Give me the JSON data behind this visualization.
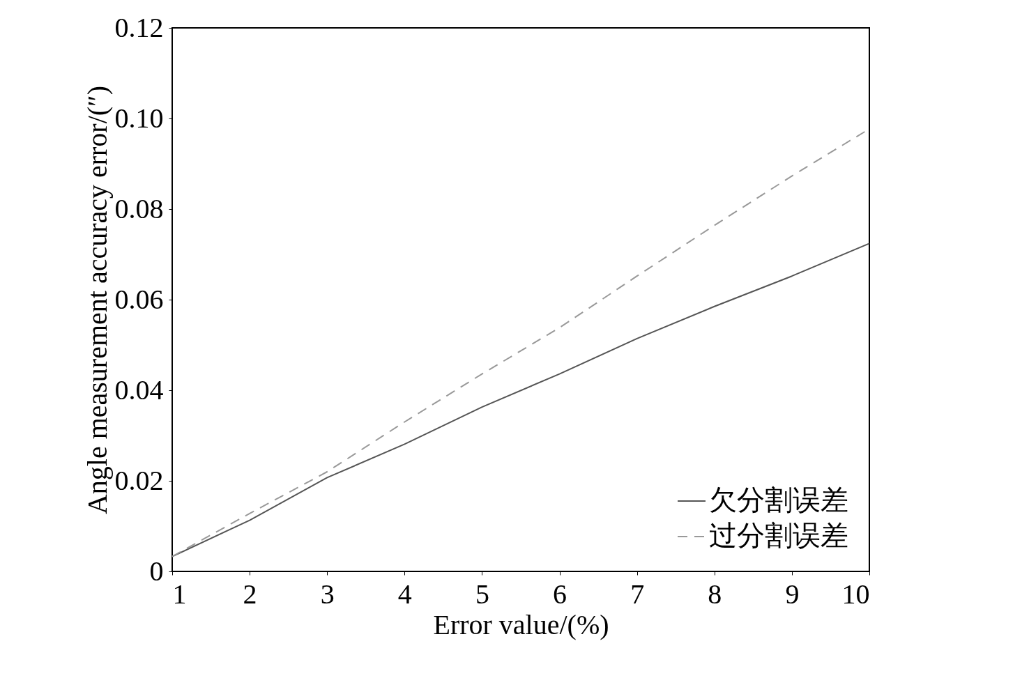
{
  "chart_data": {
    "type": "line",
    "xlabel": "Error value/(%)",
    "ylabel": "Angle measurement accuracy error/(″)",
    "x": [
      1,
      2,
      3,
      4,
      5,
      6,
      7,
      8,
      9,
      10
    ],
    "series": [
      {
        "name": "欠分割误差",
        "color": "#555555",
        "line_style": "solid",
        "values": [
          0.0033,
          0.0113,
          0.0207,
          0.0281,
          0.0363,
          0.0436,
          0.0514,
          0.0585,
          0.0652,
          0.0724
        ]
      },
      {
        "name": "过分割误差",
        "color": "#999999",
        "line_style": "dashed",
        "values": [
          0.0033,
          0.0128,
          0.022,
          0.033,
          0.0436,
          0.0538,
          0.0652,
          0.0764,
          0.0873,
          0.0977
        ]
      }
    ],
    "xlim": [
      1,
      10
    ],
    "xticks": [
      1,
      2,
      3,
      4,
      5,
      6,
      7,
      8,
      9,
      10
    ],
    "ylim": [
      0,
      0.12
    ],
    "yticks": [
      0,
      0.02,
      0.04,
      0.06,
      0.08,
      {
        "value": 0.1,
        "label": "0.10"
      },
      0.12
    ],
    "grid": false,
    "legend": "bottom right",
    "marker": "none"
  }
}
